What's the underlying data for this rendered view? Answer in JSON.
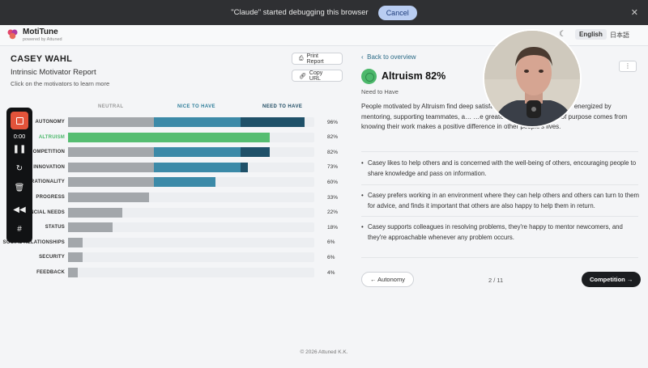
{
  "debug_banner": {
    "message": "\"Claude\" started debugging this browser",
    "cancel_label": "Cancel",
    "close": "✕"
  },
  "header": {
    "app_name": "MotiTune",
    "tagline": "powered by Attuned",
    "lang_en": "English",
    "lang_ja": "日本語"
  },
  "report": {
    "person_name": "CASEY WAHL",
    "title": "Intrinsic Motivator Report",
    "hint": "Click on the motivators to learn more",
    "print_label": "Print Report",
    "copy_label": "Copy URL"
  },
  "chart_data": {
    "type": "bar",
    "orientation": "horizontal",
    "column_headers": [
      "NEUTRAL",
      "NICE TO HAVE",
      "NEED TO HAVE"
    ],
    "categories": [
      "AUTONOMY",
      "ALTRUISM",
      "COMPETITION",
      "INNOVATION",
      "RATIONALITY",
      "PROGRESS",
      "FINANCIAL NEEDS",
      "STATUS",
      "SOCIAL RELATIONSHIPS",
      "SECURITY",
      "FEEDBACK"
    ],
    "values": [
      96,
      82,
      82,
      73,
      60,
      33,
      22,
      18,
      6,
      6,
      4
    ],
    "value_labels": [
      "96%",
      "82%",
      "82%",
      "73%",
      "60%",
      "33%",
      "22%",
      "18%",
      "6%",
      "6%",
      "4%"
    ],
    "selected": "ALTRUISM",
    "xlim": [
      0,
      100
    ],
    "colors": {
      "neutral": "#a3a7ab",
      "nice": "#3c8aa8",
      "need": "#1f5169",
      "selected": "#55bd71",
      "track": "#eceef1"
    }
  },
  "recorder": {
    "time": "0:00"
  },
  "detail": {
    "back_label": "Back to overview",
    "title": "Altruism 82%",
    "level": "Need to Have",
    "description": "People motivated by Altruism find deep satisfa… …eed and grow. They're energized by mentoring, supporting teammates, a… …e greater good. Their sense of purpose comes from knowing their work makes a positive difference in other people's lives.",
    "bullets": [
      "Casey likes to help others and is concerned with the well-being of others, encouraging people to share knowledge and pass on information.",
      "Casey prefers working in an environment where they can help others and others can turn to them for advice, and finds it important that others are also happy to help them in return.",
      "Casey supports colleagues in resolving problems, they're happy to mentor newcomers, and they're approachable whenever any problem occurs."
    ],
    "prev_label": "← Autonomy",
    "page": "2 / 11",
    "next_label": "Competition →"
  },
  "footer": {
    "copyright": "© 2026 Attuned K.K."
  }
}
